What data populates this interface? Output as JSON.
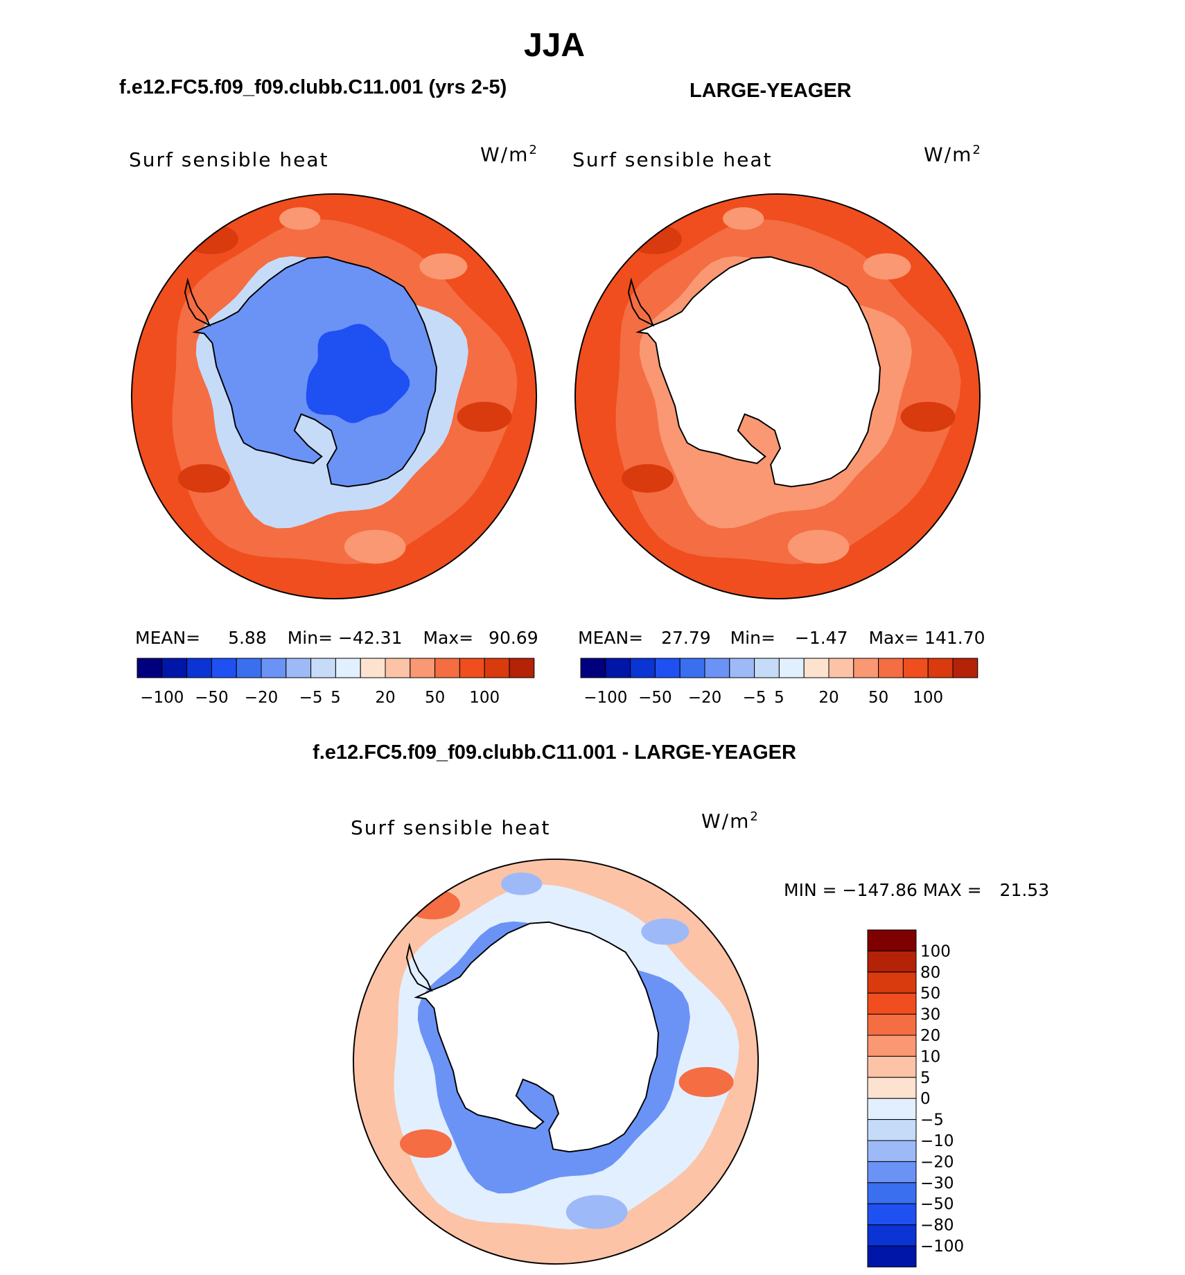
{
  "page": {
    "season": "JJA",
    "left_case": "f.e12.FC5.f09_f09.clubb.C11.001 (yrs 2-5)",
    "right_case": "LARGE-YEAGER",
    "diff_title": "f.e12.FC5.f09_f09.clubb.C11.001 - LARGE-YEAGER"
  },
  "colors": {
    "palette": [
      "#00007f",
      "#0016a8",
      "#0b34d4",
      "#1f50f2",
      "#3a6ff0",
      "#6b93f6",
      "#9db9f8",
      "#c6dbf8",
      "#e2efff",
      "#fde3cf",
      "#fcc3a6",
      "#f99872",
      "#f46d43",
      "#f04e1e",
      "#d93a0e",
      "#b42208",
      "#7f0000"
    ],
    "land_outline": "#000000",
    "map_rim": "#000000"
  },
  "chart_data": [
    {
      "type": "heatmap",
      "projection": "south-polar-stereographic",
      "panel": "left",
      "title": "f.e12.FC5.f09_f09.clubb.C11.001 (yrs 2-5)",
      "variable_label": "Surf  sensible  heat",
      "units_base": "W/m",
      "units_exp": "2",
      "stats": {
        "mean_label": "MEAN=",
        "mean": "5.88",
        "min_label": "Min=",
        "min": "−42.31",
        "max_label": "Max=",
        "max": "90.69"
      },
      "colorbar": {
        "levels": [
          -100,
          -80,
          -50,
          -30,
          -20,
          -10,
          -5,
          0,
          5,
          10,
          20,
          30,
          50,
          80,
          100
        ],
        "tick_labels": [
          "−100",
          "−50",
          "−20",
          "−5",
          "5",
          "20",
          "50",
          "100"
        ]
      },
      "field_summary": {
        "ocean_rim": 30,
        "mid_ocean": 20,
        "sea_ice_zone": -10,
        "continent": -30
      }
    },
    {
      "type": "heatmap",
      "projection": "south-polar-stereographic",
      "panel": "right",
      "title": "LARGE-YEAGER",
      "variable_label": "Surf  sensible  heat",
      "units_base": "W/m",
      "units_exp": "2",
      "stats": {
        "mean_label": "MEAN=",
        "mean": "27.79",
        "min_label": "Min=",
        "min": "−1.47",
        "max_label": "Max=",
        "max": "141.70"
      },
      "colorbar": {
        "levels": [
          -100,
          -80,
          -50,
          -30,
          -20,
          -10,
          -5,
          0,
          5,
          10,
          20,
          30,
          50,
          80,
          100
        ],
        "tick_labels": [
          "−100",
          "−50",
          "−20",
          "−5",
          "5",
          "20",
          "50",
          "100"
        ]
      },
      "field_summary": {
        "ocean_rim": 30,
        "mid_ocean": 20,
        "sea_ice_zone": 10,
        "continent": "missing"
      }
    },
    {
      "type": "heatmap",
      "projection": "south-polar-stereographic",
      "panel": "difference",
      "title": "f.e12.FC5.f09_f09.clubb.C11.001 - LARGE-YEAGER",
      "variable_label": "Surf  sensible  heat",
      "units_base": "W/m",
      "units_exp": "2",
      "stats": {
        "min_label": "MIN =",
        "min": "−147.86",
        "max_label": "MAX =",
        "max": "21.53"
      },
      "colorbar": {
        "levels": [
          100,
          80,
          50,
          30,
          20,
          10,
          5,
          0,
          -5,
          -10,
          -20,
          -30,
          -50,
          -80,
          -100
        ],
        "tick_labels": [
          "100",
          "80",
          "50",
          "30",
          "20",
          "10",
          "5",
          "0",
          "−5",
          "−10",
          "−20",
          "−30",
          "−50",
          "−80",
          "−100"
        ]
      },
      "field_summary": {
        "ocean_rim": 5,
        "mid_ocean": -5,
        "sea_ice_zone": -30,
        "continent": "missing"
      }
    }
  ]
}
